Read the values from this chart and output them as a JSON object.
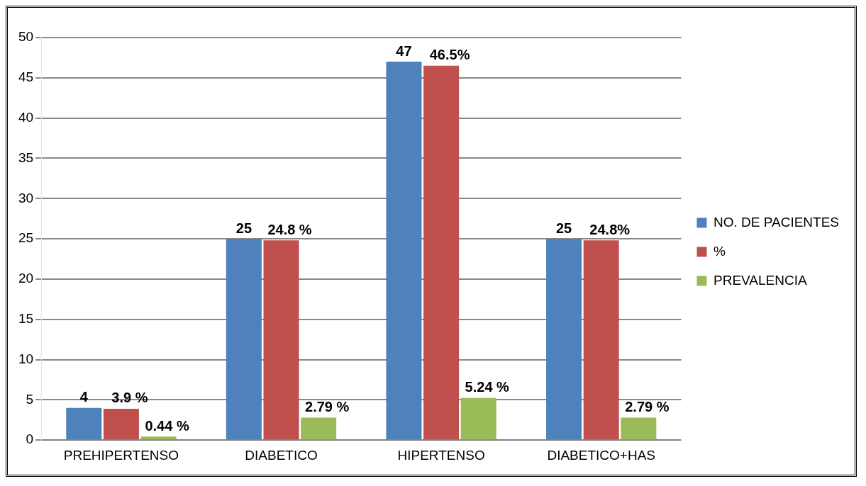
{
  "chart_data": {
    "type": "bar",
    "categories": [
      "PREHIPERTENSO",
      "DIABETICO",
      "HIPERTENSO",
      "DIABETICO+HAS"
    ],
    "series": [
      {
        "name": "NO. DE PACIENTES",
        "color": "#4f81bd",
        "values": [
          4,
          25,
          47,
          25
        ],
        "value_labels": [
          "4",
          "25",
          "47",
          "25"
        ]
      },
      {
        "name": "%",
        "color": "#c0504d",
        "values": [
          3.9,
          24.8,
          46.5,
          24.8
        ],
        "value_labels": [
          "3.9 %",
          "24.8 %",
          "46.5%",
          "24.8%"
        ]
      },
      {
        "name": "PREVALENCIA",
        "color": "#9bbb59",
        "values": [
          0.44,
          2.79,
          5.24,
          2.79
        ],
        "value_labels": [
          "0.44 %",
          "2.79 %",
          "5.24 %",
          "2.79 %"
        ]
      }
    ],
    "ylim": [
      0,
      50
    ],
    "yticks": [
      0,
      5,
      10,
      15,
      20,
      25,
      30,
      35,
      40,
      45,
      50
    ],
    "grid": "y",
    "legend": "right"
  }
}
